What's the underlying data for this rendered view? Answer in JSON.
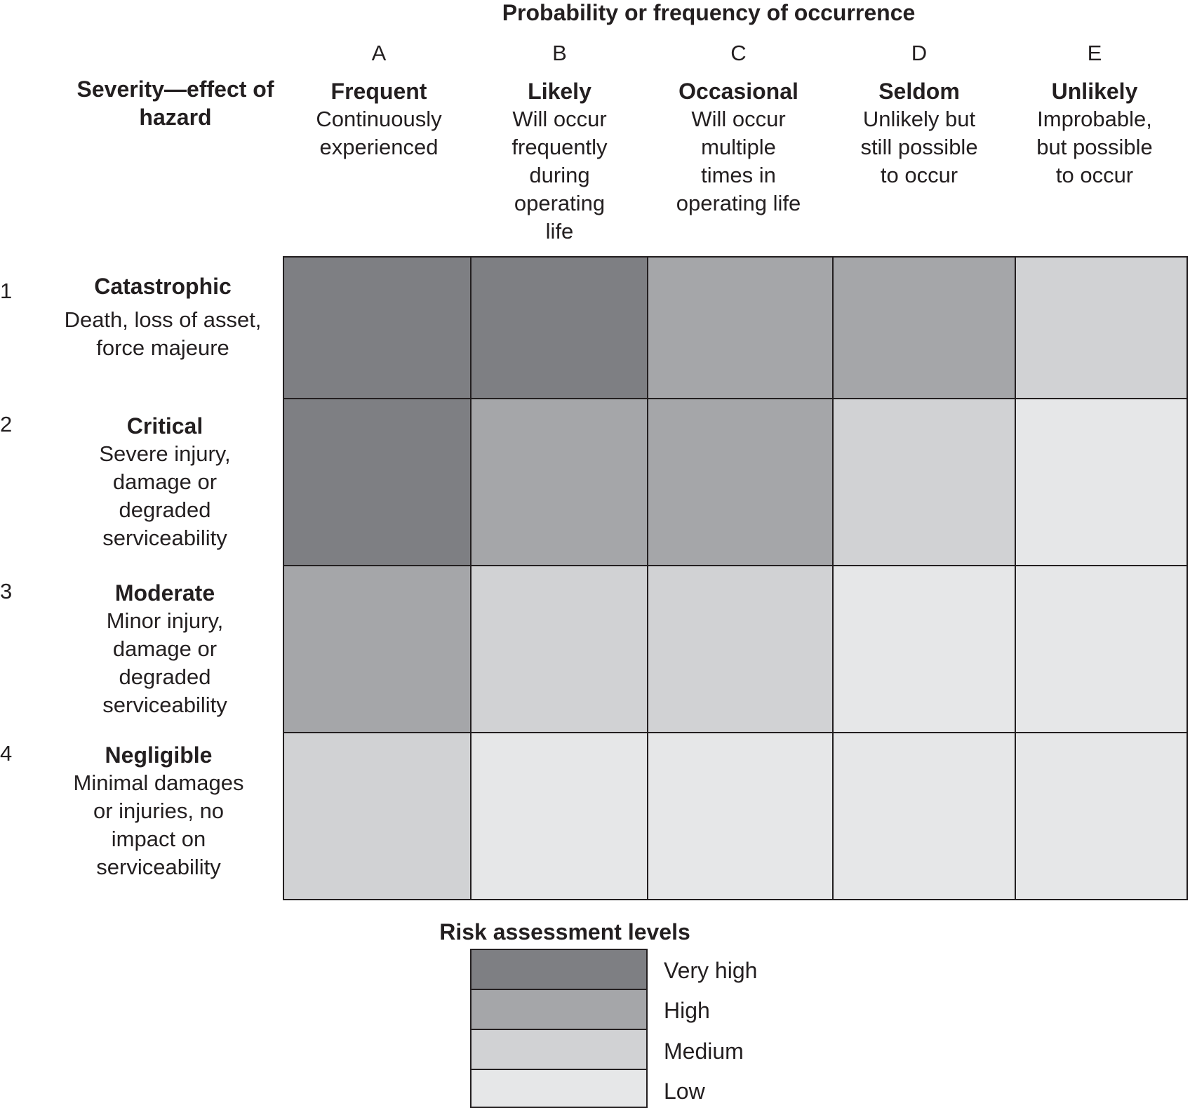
{
  "title": "Probability or frequency of occurrence",
  "severity_heading": "Severity—effect of\nhazard",
  "colors": {
    "very_high": "#7e7f83",
    "high": "#a5a6a9",
    "medium": "#d1d2d4",
    "low": "#e6e7e8",
    "border": "#231f20"
  },
  "columns": [
    {
      "letter": "A",
      "name": "Frequent",
      "desc": "Continuously\nexperienced"
    },
    {
      "letter": "B",
      "name": "Likely",
      "desc": "Will occur\nfrequently\nduring\noperating\nlife"
    },
    {
      "letter": "C",
      "name": "Occasional",
      "desc": "Will occur\nmultiple\ntimes in\noperating life"
    },
    {
      "letter": "D",
      "name": "Seldom",
      "desc": "Unlikely but\nstill possible\nto occur"
    },
    {
      "letter": "E",
      "name": "Unlikely",
      "desc": "Improbable,\nbut possible\nto occur"
    }
  ],
  "rows": [
    {
      "num": "1",
      "name": "Catastrophic",
      "desc": "Death, loss of asset,\nforce majeure",
      "levels": [
        "very_high",
        "very_high",
        "high",
        "high",
        "medium"
      ]
    },
    {
      "num": "2",
      "name": "Critical",
      "desc": "Severe injury,\ndamage or\ndegraded\nserviceability",
      "levels": [
        "very_high",
        "high",
        "high",
        "medium",
        "low"
      ]
    },
    {
      "num": "3",
      "name": "Moderate",
      "desc": "Minor injury,\ndamage or\ndegraded\nserviceability",
      "levels": [
        "high",
        "medium",
        "medium",
        "low",
        "low"
      ]
    },
    {
      "num": "4",
      "name": "Negligible",
      "desc": "Minimal damages\nor injuries, no\nimpact on\nserviceability",
      "levels": [
        "medium",
        "low",
        "low",
        "low",
        "low"
      ]
    }
  ],
  "legend": {
    "title": "Risk assessment levels",
    "items": [
      {
        "key": "very_high",
        "label": "Very high"
      },
      {
        "key": "high",
        "label": "High"
      },
      {
        "key": "medium",
        "label": "Medium"
      },
      {
        "key": "low",
        "label": "Low"
      }
    ]
  }
}
